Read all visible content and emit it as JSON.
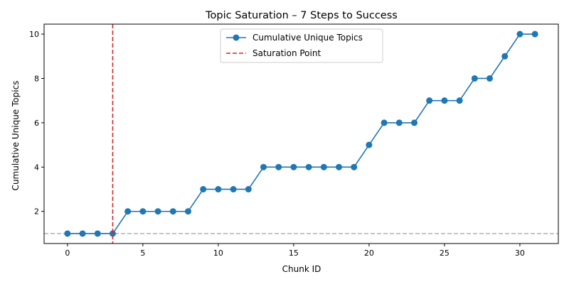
{
  "chart_data": {
    "type": "line",
    "title": "Topic Saturation – 7 Steps to Success",
    "xlabel": "Chunk ID",
    "ylabel": "Cumulative Unique Topics",
    "xlim": [
      -1.55,
      32.55
    ],
    "ylim": [
      0.55,
      10.45
    ],
    "xticks": [
      0,
      5,
      10,
      15,
      20,
      25,
      30
    ],
    "yticks": [
      2,
      4,
      6,
      8,
      10
    ],
    "legend_position": "top-center",
    "series": [
      {
        "name": "Cumulative Unique Topics",
        "style": "line-with-circle-markers",
        "color": "#1f77b4",
        "x": [
          0,
          1,
          2,
          3,
          4,
          5,
          6,
          7,
          8,
          9,
          10,
          11,
          12,
          13,
          14,
          15,
          16,
          17,
          18,
          19,
          20,
          21,
          22,
          23,
          24,
          25,
          26,
          27,
          28,
          29,
          30,
          31
        ],
        "y": [
          1,
          1,
          1,
          1,
          2,
          2,
          2,
          2,
          2,
          3,
          3,
          3,
          3,
          4,
          4,
          4,
          4,
          4,
          4,
          4,
          5,
          6,
          6,
          6,
          7,
          7,
          7,
          8,
          8,
          9,
          10,
          10
        ]
      }
    ],
    "vlines": [
      {
        "name": "Saturation Point",
        "x": 3,
        "color": "#d62728",
        "style": "dashed"
      }
    ],
    "hlines": [
      {
        "y": 1,
        "color": "#b0b0b0",
        "style": "dashed"
      }
    ]
  }
}
